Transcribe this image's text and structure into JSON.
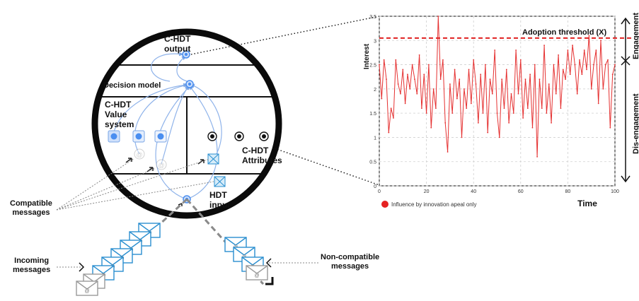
{
  "diagram": {
    "labels": {
      "chdt_output": "C-HDT\noutput",
      "decision_model": "Decision model",
      "chdt_value_system": "C-HDT\nValue\nsystem",
      "chdt_attributes": "C-HDT\nAttributes",
      "hdt_input": "HDT\ninput",
      "compatible_messages": "Compatible\nmessages",
      "incoming_messages": "Incoming\nmessages",
      "non_compatible_messages": "Non-compatible\nmessages"
    },
    "colors": {
      "ring": "#0b0b0b",
      "node_blue": "#4a8ef0",
      "arrow_blue": "#7aa6e6",
      "envelope": "#2a8fd0"
    }
  },
  "chart_data": {
    "type": "line",
    "ylabel": "Interest",
    "xlabel": "Time",
    "xlim": [
      0,
      100
    ],
    "ylim": [
      0,
      3.5
    ],
    "xticks": [
      "0",
      "20",
      "40",
      "60",
      "80",
      "100"
    ],
    "yticks": [
      "0",
      "0.5",
      "1",
      "1.5",
      "2",
      "2.5",
      "3",
      "3.5"
    ],
    "grid": true,
    "threshold": {
      "value": 3.05,
      "label": "Adoption threshold (X)"
    },
    "legend": {
      "label": "Influence by innovation apeal only",
      "color": "#e52222",
      "placement": "below-left"
    },
    "series_color": "#e53030",
    "engagement_label": "Engagement",
    "disengagement_label": "Dis-engagement",
    "x": [
      0,
      1,
      2,
      3,
      4,
      5,
      6,
      7,
      8,
      9,
      10,
      11,
      12,
      13,
      14,
      15,
      16,
      17,
      18,
      19,
      20,
      21,
      22,
      23,
      24,
      25,
      26,
      27,
      28,
      29,
      30,
      31,
      32,
      33,
      34,
      35,
      36,
      37,
      38,
      39,
      40,
      41,
      42,
      43,
      44,
      45,
      46,
      47,
      48,
      49,
      50,
      51,
      52,
      53,
      54,
      55,
      56,
      57,
      58,
      59,
      60,
      61,
      62,
      63,
      64,
      65,
      66,
      67,
      68,
      69,
      70,
      71,
      72,
      73,
      74,
      75,
      76,
      77,
      78,
      79,
      80,
      81,
      82,
      83,
      84,
      85,
      86,
      87,
      88,
      89,
      90,
      91,
      92,
      93,
      94,
      95,
      96,
      97,
      98,
      99,
      100
    ],
    "y": [
      2.5,
      1.8,
      2.6,
      2.2,
      1.1,
      1.6,
      1.4,
      2.6,
      2.1,
      1.9,
      2.4,
      1.7,
      2.3,
      2.0,
      2.5,
      2.2,
      1.9,
      2.7,
      1.6,
      2.3,
      1.5,
      2.5,
      1.2,
      2.0,
      1.6,
      3.5,
      2.2,
      2.6,
      1.3,
      0.7,
      2.1,
      1.5,
      2.4,
      1.8,
      2.2,
      1.0,
      2.0,
      1.6,
      2.4,
      1.7,
      2.6,
      2.1,
      1.3,
      2.3,
      1.5,
      2.5,
      1.1,
      2.2,
      1.9,
      2.8,
      1.5,
      1.0,
      2.2,
      1.6,
      2.4,
      1.3,
      1.9,
      1.5,
      2.8,
      1.9,
      2.6,
      1.4,
      2.2,
      1.6,
      2.3,
      1.2,
      2.5,
      0.6,
      2.2,
      1.6,
      2.9,
      1.5,
      2.1,
      1.3,
      2.5,
      1.9,
      2.7,
      1.6,
      2.4,
      2.2,
      2.8,
      2.3,
      2.9,
      2.5,
      1.9,
      2.6,
      2.3,
      2.8,
      2.4,
      3.1,
      2.0,
      2.5,
      2.8,
      1.7,
      3.0,
      2.0,
      2.5,
      2.6,
      1.2,
      2.3,
      2.5
    ]
  }
}
